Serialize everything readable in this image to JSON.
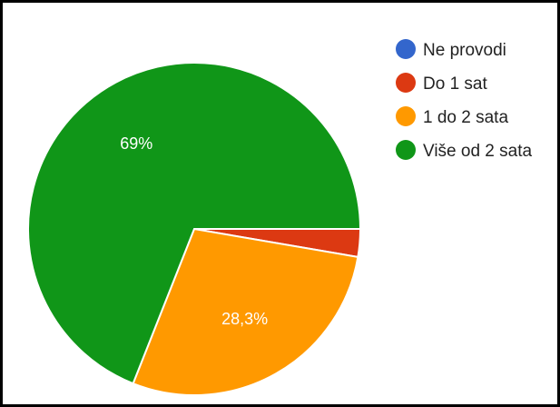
{
  "chart_data": {
    "type": "pie",
    "title": "",
    "slices": [
      {
        "label": "Ne provodi",
        "value": 0,
        "color": "#3366cc",
        "display": ""
      },
      {
        "label": "Do 1 sat",
        "value": 2.7,
        "color": "#dc3912",
        "display": ""
      },
      {
        "label": "1 do 2 sata",
        "value": 28.3,
        "color": "#ff9900",
        "display": "28,3%"
      },
      {
        "label": "Više od 2 sata",
        "value": 69,
        "color": "#109618",
        "display": "69%"
      }
    ],
    "legend_position": "right",
    "start_angle": "3 o'clock",
    "direction": "clockwise"
  }
}
